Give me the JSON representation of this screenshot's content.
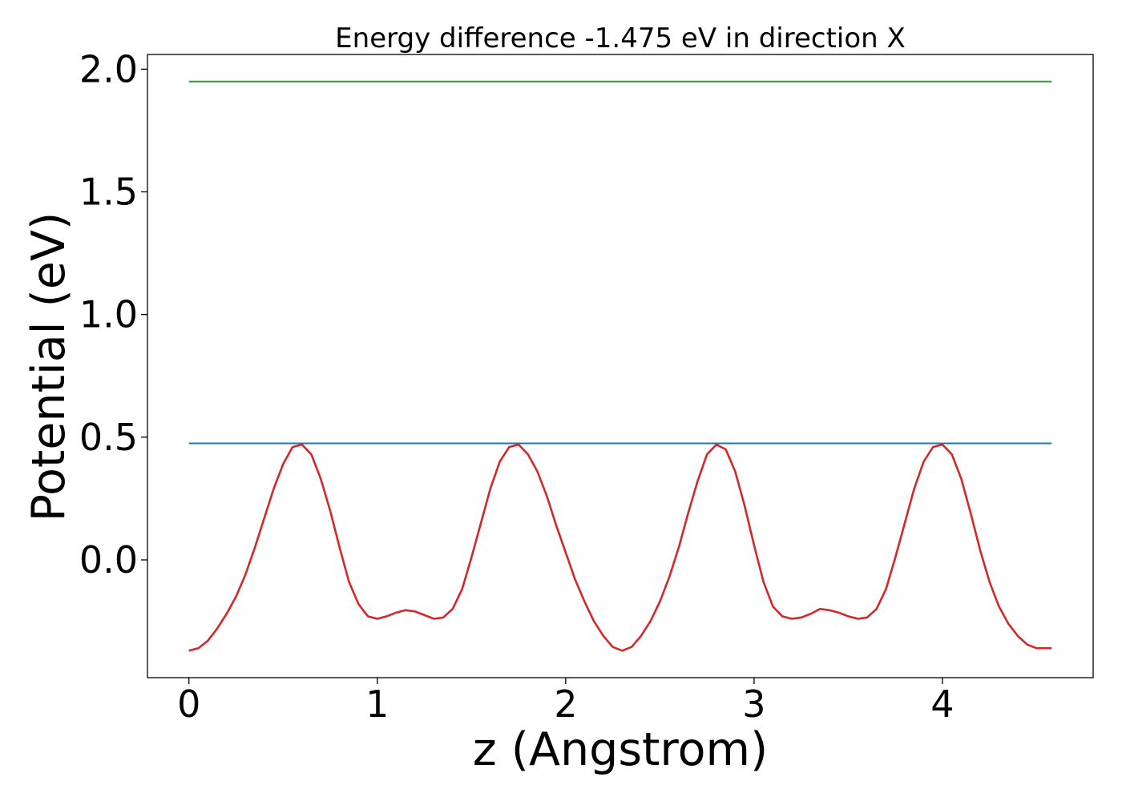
{
  "chart_data": {
    "type": "line",
    "title": "Energy difference -1.475 eV in direction X",
    "xlabel": "z (Angstrom)",
    "ylabel": "Potential (eV)",
    "xlim": [
      -0.22,
      4.8
    ],
    "ylim": [
      -0.48,
      2.06
    ],
    "xticks": [
      0,
      1,
      2,
      3,
      4
    ],
    "yticks": [
      0.0,
      0.5,
      1.0,
      1.5,
      2.0
    ],
    "xtick_labels": [
      "0",
      "1",
      "2",
      "3",
      "4"
    ],
    "ytick_labels": [
      "0.0",
      "0.5",
      "1.0",
      "1.5",
      "2.0"
    ],
    "grid": false,
    "series": [
      {
        "color": "#2ca02c",
        "x": [
          0,
          4.58
        ],
        "y": [
          1.95,
          1.95
        ]
      },
      {
        "color": "#1f77b4",
        "x": [
          0,
          4.58
        ],
        "y": [
          0.475,
          0.475
        ]
      },
      {
        "color": "#d62728",
        "x": [
          0.0,
          0.05,
          0.1,
          0.15,
          0.2,
          0.25,
          0.3,
          0.35,
          0.4,
          0.45,
          0.5,
          0.55,
          0.6,
          0.65,
          0.7,
          0.75,
          0.8,
          0.85,
          0.9,
          0.95,
          1.0,
          1.05,
          1.1,
          1.15,
          1.2,
          1.25,
          1.3,
          1.35,
          1.4,
          1.45,
          1.5,
          1.55,
          1.6,
          1.65,
          1.7,
          1.75,
          1.8,
          1.85,
          1.9,
          1.95,
          2.0,
          2.05,
          2.1,
          2.15,
          2.2,
          2.25,
          2.3,
          2.35,
          2.4,
          2.45,
          2.5,
          2.55,
          2.6,
          2.65,
          2.7,
          2.75,
          2.8,
          2.85,
          2.9,
          2.95,
          3.0,
          3.05,
          3.1,
          3.15,
          3.2,
          3.25,
          3.3,
          3.35,
          3.4,
          3.45,
          3.5,
          3.55,
          3.6,
          3.65,
          3.7,
          3.75,
          3.8,
          3.85,
          3.9,
          3.95,
          4.0,
          4.05,
          4.1,
          4.15,
          4.2,
          4.25,
          4.3,
          4.35,
          4.4,
          4.45,
          4.5,
          4.55,
          4.58
        ],
        "y": [
          -0.37,
          -0.36,
          -0.33,
          -0.28,
          -0.22,
          -0.15,
          -0.06,
          0.05,
          0.17,
          0.29,
          0.39,
          0.46,
          0.47,
          0.43,
          0.33,
          0.2,
          0.05,
          -0.09,
          -0.18,
          -0.23,
          -0.24,
          -0.23,
          -0.215,
          -0.205,
          -0.21,
          -0.225,
          -0.24,
          -0.235,
          -0.2,
          -0.12,
          0.01,
          0.15,
          0.29,
          0.4,
          0.46,
          0.47,
          0.43,
          0.36,
          0.26,
          0.14,
          0.03,
          -0.08,
          -0.17,
          -0.25,
          -0.31,
          -0.355,
          -0.37,
          -0.355,
          -0.31,
          -0.25,
          -0.17,
          -0.07,
          0.05,
          0.19,
          0.32,
          0.43,
          0.47,
          0.45,
          0.36,
          0.22,
          0.06,
          -0.09,
          -0.19,
          -0.23,
          -0.24,
          -0.235,
          -0.22,
          -0.2,
          -0.205,
          -0.215,
          -0.23,
          -0.24,
          -0.235,
          -0.2,
          -0.12,
          0.01,
          0.15,
          0.29,
          0.4,
          0.46,
          0.47,
          0.43,
          0.33,
          0.19,
          0.04,
          -0.09,
          -0.19,
          -0.26,
          -0.31,
          -0.345,
          -0.36,
          -0.36,
          -0.36
        ]
      }
    ]
  }
}
